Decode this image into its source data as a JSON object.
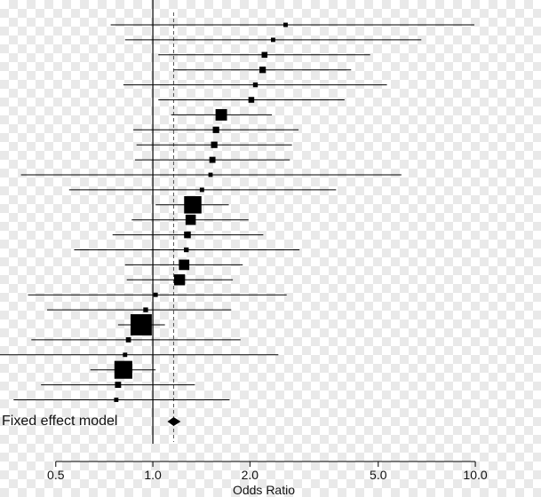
{
  "chart_data": {
    "type": "forest",
    "xlabel": "Odds Ratio",
    "x_scale": "log",
    "xlim": [
      0.36,
      10.0
    ],
    "ticks": [
      {
        "value": 0.5,
        "label": "0.5"
      },
      {
        "value": 1.0,
        "label": "1.0"
      },
      {
        "value": 2.0,
        "label": "2.0"
      },
      {
        "value": 5.0,
        "label": "5.0"
      },
      {
        "value": 10.0,
        "label": "10.0"
      }
    ],
    "reference_line": 1.0,
    "pooled_line": 1.16,
    "studies": [
      {
        "or": 2.58,
        "lower": 0.74,
        "upper": 9.93,
        "weight": 0.5
      },
      {
        "or": 2.36,
        "lower": 0.82,
        "upper": 6.8,
        "weight": 0.5
      },
      {
        "or": 2.22,
        "lower": 1.04,
        "upper": 4.72,
        "weight": 0.9
      },
      {
        "or": 2.19,
        "lower": 1.16,
        "upper": 4.12,
        "weight": 1.1
      },
      {
        "or": 2.08,
        "lower": 0.81,
        "upper": 5.32,
        "weight": 0.6
      },
      {
        "or": 2.02,
        "lower": 1.04,
        "upper": 3.93,
        "weight": 0.9
      },
      {
        "or": 1.63,
        "lower": 1.14,
        "upper": 2.34,
        "weight": 3.5
      },
      {
        "or": 1.57,
        "lower": 0.87,
        "upper": 2.83,
        "weight": 1.1
      },
      {
        "or": 1.55,
        "lower": 0.89,
        "upper": 2.7,
        "weight": 1.1
      },
      {
        "or": 1.53,
        "lower": 0.88,
        "upper": 2.66,
        "weight": 1.0
      },
      {
        "or": 1.51,
        "lower": 0.39,
        "upper": 5.9,
        "weight": 0.5
      },
      {
        "or": 1.42,
        "lower": 0.55,
        "upper": 3.7,
        "weight": 0.5
      },
      {
        "or": 1.33,
        "lower": 1.02,
        "upper": 1.72,
        "weight": 8.0
      },
      {
        "or": 1.31,
        "lower": 0.86,
        "upper": 1.98,
        "weight": 2.8
      },
      {
        "or": 1.28,
        "lower": 0.75,
        "upper": 2.2,
        "weight": 1.2
      },
      {
        "or": 1.27,
        "lower": 0.57,
        "upper": 2.85,
        "weight": 0.6
      },
      {
        "or": 1.25,
        "lower": 0.82,
        "upper": 1.9,
        "weight": 2.9
      },
      {
        "or": 1.21,
        "lower": 0.83,
        "upper": 1.77,
        "weight": 3.2
      },
      {
        "or": 1.02,
        "lower": 0.41,
        "upper": 2.6,
        "weight": 0.5
      },
      {
        "or": 0.95,
        "lower": 0.47,
        "upper": 1.75,
        "weight": 0.6
      },
      {
        "or": 0.92,
        "lower": 0.78,
        "upper": 1.09,
        "weight": 12.0
      },
      {
        "or": 0.84,
        "lower": 0.42,
        "upper": 1.87,
        "weight": 0.7
      },
      {
        "or": 0.82,
        "lower": 0.32,
        "upper": 2.45,
        "weight": 0.5
      },
      {
        "or": 0.81,
        "lower": 0.64,
        "upper": 1.02,
        "weight": 8.5
      },
      {
        "or": 0.78,
        "lower": 0.45,
        "upper": 1.35,
        "weight": 1.0
      },
      {
        "or": 0.77,
        "lower": 0.37,
        "upper": 1.73,
        "weight": 0.5
      }
    ],
    "fixed_effect": {
      "label": "Fixed effect model",
      "or": 1.16,
      "lower": 1.11,
      "upper": 1.22
    }
  }
}
